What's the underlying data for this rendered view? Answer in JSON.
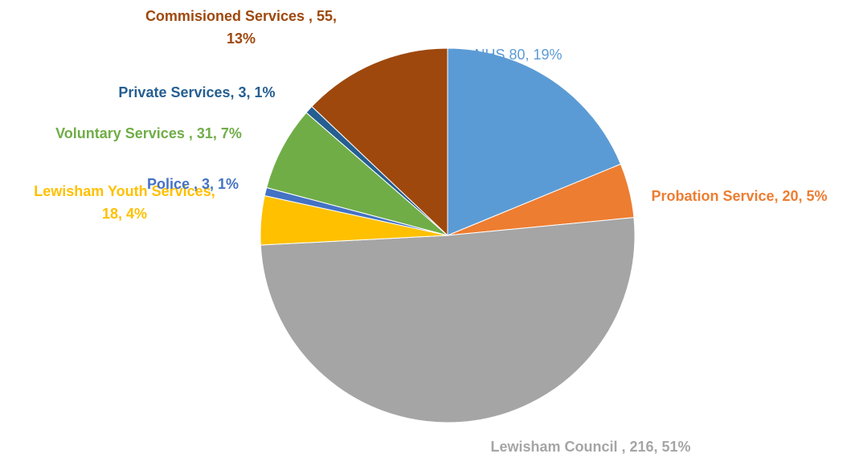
{
  "chart_data": {
    "type": "pie",
    "title": "",
    "slices": [
      {
        "label": "NHS",
        "value": 80,
        "percent": "19%",
        "color": "#5B9BD5",
        "label_text": [
          "NHS 80, 19%"
        ],
        "bold": false
      },
      {
        "label": "Probation Service",
        "value": 20,
        "percent": "5%",
        "color": "#ED7D31",
        "label_text": [
          "Probation Service, 20, 5%"
        ],
        "bold": true
      },
      {
        "label": "Lewisham Council",
        "value": 216,
        "percent": "51%",
        "color": "#A5A5A5",
        "label_text": [
          "Lewisham Council , 216, 51%"
        ],
        "bold": true
      },
      {
        "label": "Lewisham Youth Services",
        "value": 18,
        "percent": "4%",
        "color": "#FFC000",
        "label_text": [
          "Lewisham Youth Services,",
          "18, 4%"
        ],
        "bold": true
      },
      {
        "label": "Police",
        "value": 3,
        "percent": "1%",
        "color": "#4472C4",
        "label_text": [
          "Police , 3, 1%"
        ],
        "bold": true
      },
      {
        "label": "Voluntary Services",
        "value": 31,
        "percent": "7%",
        "color": "#70AD47",
        "label_text": [
          "Voluntary Services , 31, 7%"
        ],
        "bold": true
      },
      {
        "label": "Private Services",
        "value": 3,
        "percent": "1%",
        "color": "#255E91",
        "label_text": [
          "Private Services, 3, 1%"
        ],
        "bold": true
      },
      {
        "label": "Commisioned Services",
        "value": 55,
        "percent": "13%",
        "color": "#9E480E",
        "label_text": [
          "Commisioned Services , 55,",
          "13%"
        ],
        "bold": true
      }
    ],
    "start_angle_deg": 0,
    "direction": "clockwise",
    "legend": "none"
  }
}
